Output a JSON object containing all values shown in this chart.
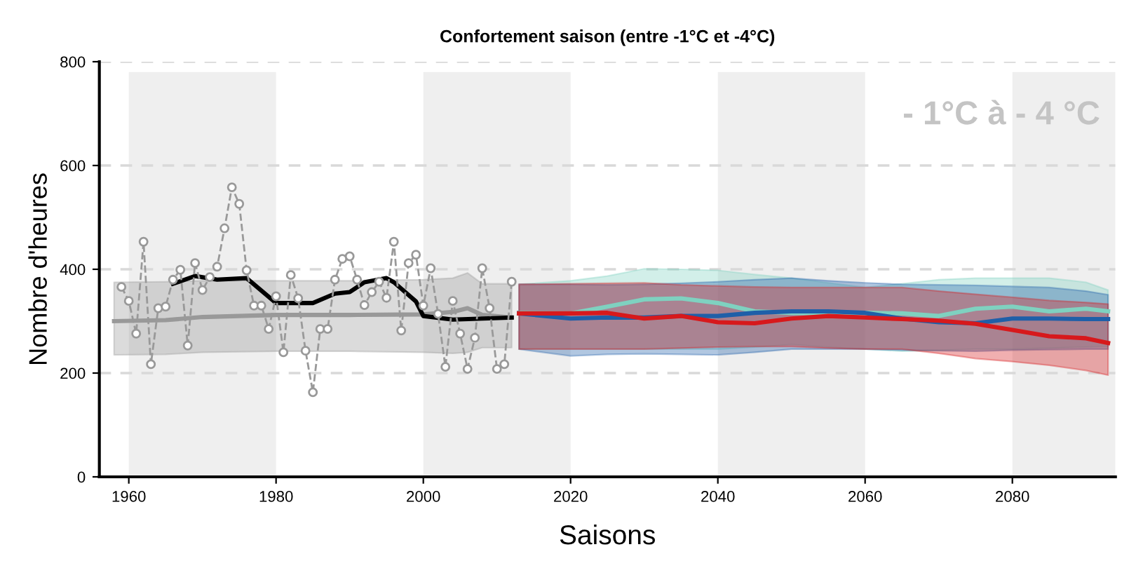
{
  "chart_data": {
    "type": "line",
    "title": "Confortement saison (entre -1°C et -4°C)",
    "xlabel": "Saisons",
    "ylabel": "Nombre d'heures",
    "annotations": [
      "- 1°C à - 4 °C"
    ],
    "xlim": [
      1956,
      2094
    ],
    "xticks": [
      1960,
      1980,
      2000,
      2020,
      2040,
      2060,
      2080
    ],
    "ylim": [
      0,
      800
    ],
    "yticks": [
      0,
      200,
      400,
      600,
      800
    ],
    "grid": "y",
    "bands": [
      {
        "axis": "x",
        "from": 1960,
        "to": 1980,
        "color": "#efefef"
      },
      {
        "axis": "x",
        "from": 2000,
        "to": 2020,
        "color": "#efefef"
      },
      {
        "axis": "x",
        "from": 2040,
        "to": 2060,
        "color": "#efefef"
      },
      {
        "axis": "x",
        "from": 2080,
        "to": 2094,
        "color": "#efefef"
      }
    ],
    "series": [
      {
        "color": "#999999",
        "x": [
          1958,
          1965,
          1970,
          1980,
          1990,
          2000,
          2004,
          2006,
          2008,
          2012
        ],
        "values": [
          300,
          302,
          308,
          312,
          312,
          313,
          318,
          325,
          312,
          307
        ],
        "lower": [
          235,
          236,
          240,
          242,
          242,
          240,
          238,
          240,
          249,
          249
        ],
        "upper": [
          375,
          376,
          378,
          378,
          378,
          380,
          383,
          393,
          372,
          372
        ]
      },
      {
        "color": "#999999",
        "marker": "circle",
        "line_style": "dashed",
        "x": [
          1959,
          1960,
          1961,
          1962,
          1963,
          1964,
          1965,
          1966,
          1967,
          1968,
          1969,
          1970,
          1971,
          1972,
          1973,
          1974,
          1975,
          1976,
          1977,
          1978,
          1979,
          1980,
          1981,
          1982,
          1983,
          1984,
          1985,
          1986,
          1987,
          1988,
          1989,
          1990,
          1991,
          1992,
          1993,
          1994,
          1995,
          1996,
          1997,
          1998,
          1999,
          2000,
          2001,
          2002,
          2003,
          2004,
          2005,
          2006,
          2007,
          2008,
          2009,
          2010,
          2011,
          2012
        ],
        "values": [
          366,
          339,
          276,
          453,
          217,
          325,
          328,
          380,
          399,
          253,
          412,
          360,
          385,
          405,
          479,
          558,
          526,
          398,
          330,
          330,
          285,
          348,
          240,
          389,
          344,
          243,
          163,
          285,
          285,
          380,
          420,
          425,
          380,
          331,
          356,
          376,
          345,
          453,
          282,
          412,
          428,
          330,
          402,
          314,
          212,
          339,
          276,
          208,
          268,
          402,
          325,
          208,
          217,
          376
        ]
      },
      {
        "color": "#000000",
        "x": [
          1966,
          1969,
          1972,
          1976,
          1980,
          1985,
          1988,
          1990,
          1992,
          1995,
          1996,
          1999,
          2000,
          2004,
          2012
        ],
        "values": [
          372,
          387,
          380,
          383,
          335,
          335,
          353,
          356,
          375,
          383,
          375,
          338,
          310,
          303,
          307
        ]
      },
      {
        "color": "#7fd1c0",
        "x": [
          2013,
          2020,
          2025,
          2030,
          2035,
          2040,
          2045,
          2050,
          2055,
          2060,
          2065,
          2070,
          2075,
          2080,
          2085,
          2090,
          2093
        ],
        "values": [
          316,
          315,
          328,
          342,
          344,
          335,
          319,
          316,
          315,
          316,
          315,
          310,
          324,
          328,
          319,
          324,
          319
        ],
        "upper": [
          371,
          378,
          387,
          401,
          400,
          398,
          390,
          383,
          374,
          365,
          372,
          380,
          383,
          383,
          383,
          375,
          360
        ],
        "lower": [
          246,
          246,
          246,
          246,
          246,
          246,
          250,
          255,
          250,
          246,
          242,
          244,
          246,
          246,
          248,
          250,
          251
        ]
      },
      {
        "color": "#1f5fa8",
        "x": [
          2013,
          2020,
          2025,
          2030,
          2035,
          2040,
          2045,
          2050,
          2055,
          2060,
          2065,
          2070,
          2075,
          2080,
          2085,
          2090,
          2093
        ],
        "values": [
          315,
          305,
          307,
          307,
          310,
          310,
          316,
          319,
          319,
          316,
          305,
          298,
          296,
          305,
          305,
          304,
          304
        ],
        "upper": [
          371,
          371,
          370,
          371,
          373,
          376,
          380,
          383,
          378,
          374,
          371,
          370,
          369,
          367,
          365,
          358,
          351
        ],
        "lower": [
          246,
          233,
          236,
          237,
          236,
          235,
          240,
          246,
          246,
          246,
          244,
          243,
          242,
          244,
          245,
          246,
          246
        ]
      },
      {
        "color": "#d7191c",
        "x": [
          2013,
          2020,
          2025,
          2030,
          2035,
          2040,
          2045,
          2050,
          2055,
          2060,
          2065,
          2070,
          2075,
          2080,
          2085,
          2090,
          2093
        ],
        "values": [
          315,
          315,
          316,
          305,
          310,
          298,
          296,
          305,
          310,
          307,
          304,
          301,
          295,
          283,
          271,
          267,
          258
        ],
        "upper": [
          371,
          372,
          373,
          374,
          370,
          368,
          366,
          365,
          365,
          365,
          365,
          358,
          352,
          346,
          340,
          336,
          333
        ],
        "lower": [
          246,
          246,
          246,
          246,
          248,
          250,
          251,
          251,
          248,
          246,
          246,
          238,
          228,
          222,
          215,
          205,
          196
        ]
      }
    ]
  }
}
